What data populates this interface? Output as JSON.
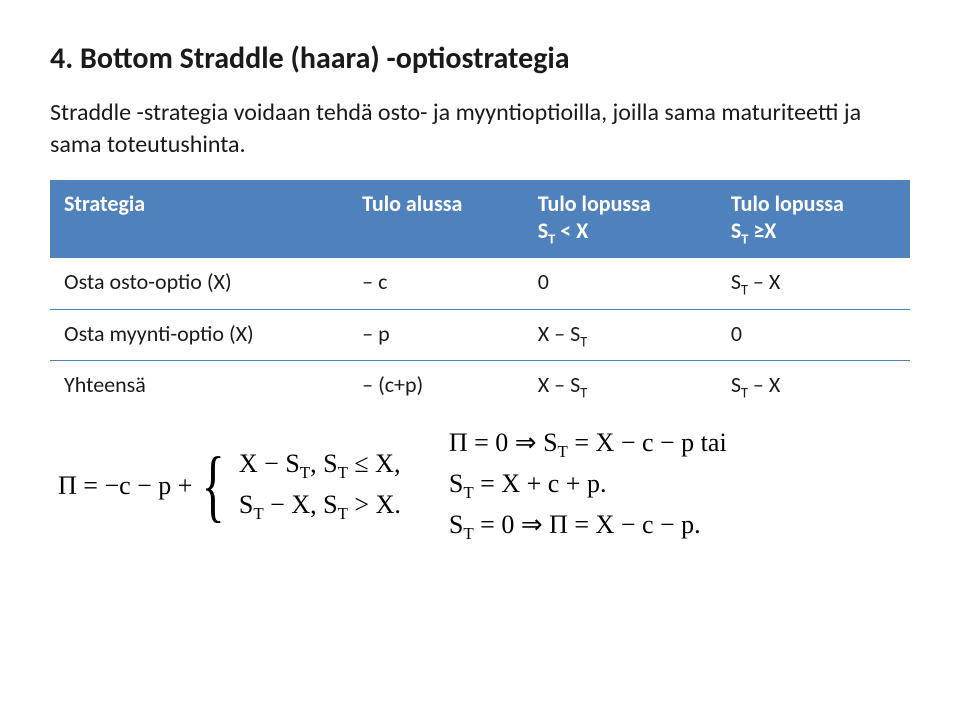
{
  "title": "4. Bottom Straddle (haara) -optiostrategia",
  "paragraph": "Straddle -strategia voidaan tehdä osto- ja myyntioptioilla, joilla sama maturiteetti ja sama toteutushinta.",
  "table": {
    "header": {
      "c0": "Strategia",
      "c1": "Tulo alussa",
      "c2_line1": "Tulo lopussa",
      "c2_line2_a": "S",
      "c2_line2_b": "T",
      "c2_line2_c": " < X",
      "c3_line1": "Tulo lopussa",
      "c3_line2_a": "S",
      "c3_line2_b": "T",
      "c3_line2_c": " ≥X"
    },
    "rows": [
      {
        "c0": "Osta osto-optio (X)",
        "c1": "– c",
        "c2": "0",
        "c3_a": "S",
        "c3_b": "T",
        "c3_c": " – X"
      },
      {
        "c0": "Osta myynti-optio (X)",
        "c1": "– p",
        "c2_a": "X – S",
        "c2_b": "T",
        "c3": "0"
      },
      {
        "c0": "Yhteensä",
        "c1": "– (c+p)",
        "c2_a": "X – S",
        "c2_b": "T",
        "c3_a": "S",
        "c3_b": "T",
        "c3_c": " – X"
      }
    ]
  },
  "eq": {
    "left_prefix": "Π = −c − p + ",
    "left_line1_a": "X − S",
    "left_line1_b": "T",
    "left_line1_c": ",  S",
    "left_line1_d": "T",
    "left_line1_e": " ≤ X,",
    "left_line2_a": "S",
    "left_line2_b": "T",
    "left_line2_c": " − X,  S",
    "left_line2_d": "T",
    "left_line2_e": " > X.",
    "right1_a": "Π = 0 ⇒ S",
    "right1_b": "T",
    "right1_c": " = X − c − p tai",
    "right2_a": "S",
    "right2_b": "T",
    "right2_c": " = X + c + p.",
    "right3_a": "S",
    "right3_b": "T",
    "right3_c": " = 0 ⇒ Π = X − c − p."
  }
}
